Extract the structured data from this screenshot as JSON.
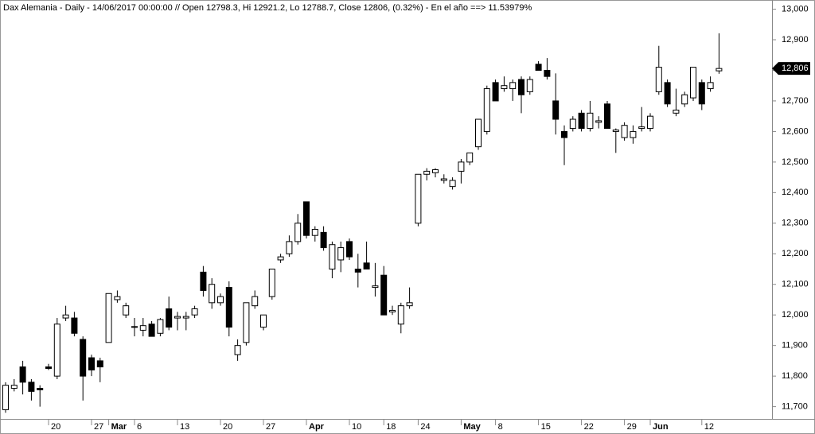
{
  "chart_data": {
    "type": "candlestick",
    "title": "Dax Alemania - Daily - 14/06/2017 00:00:00 // Open 12798.3, Hi 12921.2, Lo 12788.7, Close 12806, (0.32%) - En el año ==> 11.53979%",
    "categories": [
      null,
      null,
      null,
      null,
      null,
      "20",
      null,
      null,
      null,
      null,
      "27",
      null,
      "Mar",
      null,
      null,
      "6",
      null,
      null,
      null,
      null,
      "13",
      null,
      null,
      null,
      null,
      "20",
      null,
      null,
      null,
      null,
      "27",
      null,
      null,
      null,
      null,
      "Apr",
      null,
      null,
      null,
      null,
      "10",
      null,
      null,
      null,
      "18",
      null,
      null,
      null,
      "24",
      null,
      null,
      null,
      null,
      "May",
      null,
      null,
      null,
      "8",
      null,
      null,
      null,
      null,
      "15",
      null,
      null,
      null,
      null,
      "22",
      null,
      null,
      null,
      null,
      "29",
      null,
      null,
      "Jun",
      null,
      null,
      null,
      null,
      null,
      "12",
      null,
      null
    ],
    "open": [
      11690,
      11760,
      11830,
      11780,
      11760,
      11830,
      11800,
      11990,
      11990,
      11920,
      11860,
      11850,
      11910,
      12050,
      12000,
      11960,
      11950,
      11970,
      11940,
      12020,
      11990,
      11990,
      12000,
      12140,
      12040,
      12040,
      12090,
      11870,
      11910,
      12030,
      11960,
      12060,
      12180,
      12200,
      12240,
      12370,
      12260,
      12270,
      12150,
      12180,
      12240,
      12150,
      12170,
      12090,
      12130,
      12010,
      11970,
      12030,
      12300,
      12460,
      12465,
      12440,
      12420,
      12470,
      12500,
      12550,
      12600,
      12760,
      12740,
      12740,
      12770,
      12730,
      12820,
      12800,
      12700,
      12600,
      12610,
      12660,
      12610,
      12630,
      12690,
      12600,
      12580,
      12580,
      12610,
      12610,
      12730,
      12760,
      12660,
      12690,
      12710,
      12760,
      12740,
      12798.3
    ],
    "high": [
      11780,
      11790,
      11850,
      11790,
      11770,
      11840,
      11990,
      12030,
      12010,
      11930,
      11870,
      11860,
      12070,
      12080,
      12040,
      11990,
      11990,
      11980,
      11990,
      12060,
      12010,
      12010,
      12030,
      12160,
      12120,
      12070,
      12110,
      11920,
      12040,
      12080,
      12000,
      12150,
      12200,
      12260,
      12330,
      12370,
      12290,
      12290,
      12240,
      12240,
      12250,
      12200,
      12240,
      12170,
      12160,
      12030,
      12040,
      12090,
      12460,
      12480,
      12480,
      12460,
      12450,
      12510,
      12530,
      12640,
      12750,
      12770,
      12780,
      12770,
      12780,
      12780,
      12830,
      12840,
      12790,
      12620,
      12650,
      12670,
      12700,
      12650,
      12700,
      12610,
      12630,
      12620,
      12680,
      12660,
      12880,
      12770,
      12740,
      12730,
      12810,
      12770,
      12780,
      12921.2
    ],
    "low": [
      11680,
      11750,
      11740,
      11720,
      11700,
      11820,
      11790,
      11980,
      11930,
      11720,
      11800,
      11780,
      11910,
      12040,
      11990,
      11930,
      11930,
      11930,
      11930,
      11950,
      11950,
      11950,
      11990,
      12060,
      12020,
      12030,
      11930,
      11850,
      11900,
      12020,
      11950,
      12050,
      12170,
      12190,
      12230,
      12250,
      12240,
      12210,
      12120,
      12140,
      12180,
      12090,
      12150,
      12060,
      12000,
      12000,
      11940,
      12020,
      12290,
      12440,
      12450,
      12430,
      12410,
      12430,
      12490,
      12540,
      12590,
      12700,
      12730,
      12700,
      12660,
      12720,
      12800,
      12770,
      12590,
      12490,
      12600,
      12600,
      12600,
      12610,
      12610,
      12530,
      12570,
      12560,
      12600,
      12600,
      12720,
      12680,
      12650,
      12680,
      12700,
      12670,
      12730,
      12788.7
    ],
    "close": [
      11770,
      11770,
      11780,
      11750,
      11755,
      11825,
      11970,
      12000,
      11940,
      11800,
      11820,
      11830,
      12070,
      12060,
      12030,
      11962,
      11965,
      11930,
      11985,
      11960,
      11995,
      11995,
      12020,
      12080,
      12100,
      12060,
      11960,
      11900,
      12040,
      12060,
      12000,
      12150,
      12190,
      12240,
      12300,
      12260,
      12280,
      12220,
      12230,
      12220,
      12190,
      12140,
      12150,
      12095,
      12000,
      12015,
      12030,
      12040,
      12460,
      12470,
      12475,
      12445,
      12440,
      12500,
      12530,
      12640,
      12740,
      12700,
      12750,
      12760,
      12720,
      12770,
      12800,
      12780,
      12640,
      12580,
      12640,
      12610,
      12660,
      12635,
      12610,
      12605,
      12620,
      12600,
      12615,
      12650,
      12810,
      12690,
      12670,
      12720,
      12810,
      12690,
      12760,
      12806
    ],
    "last_price": {
      "value": 12806,
      "label": "12,806"
    },
    "ylim": [
      11660,
      13030
    ],
    "yticks": [
      {
        "value": 11700,
        "label": "11,700"
      },
      {
        "value": 11800,
        "label": "11,800"
      },
      {
        "value": 11900,
        "label": "11,900"
      },
      {
        "value": 12000,
        "label": "12,000"
      },
      {
        "value": 12100,
        "label": "12,100"
      },
      {
        "value": 12200,
        "label": "12,200"
      },
      {
        "value": 12300,
        "label": "12,300"
      },
      {
        "value": 12400,
        "label": "12,400"
      },
      {
        "value": 12500,
        "label": "12,500"
      },
      {
        "value": 12600,
        "label": "12,600"
      },
      {
        "value": 12700,
        "label": "12,700"
      },
      {
        "value": 12800,
        "label": "12,800"
      },
      {
        "value": 12900,
        "label": "12,900"
      },
      {
        "value": 13000,
        "label": "13,000"
      }
    ]
  }
}
